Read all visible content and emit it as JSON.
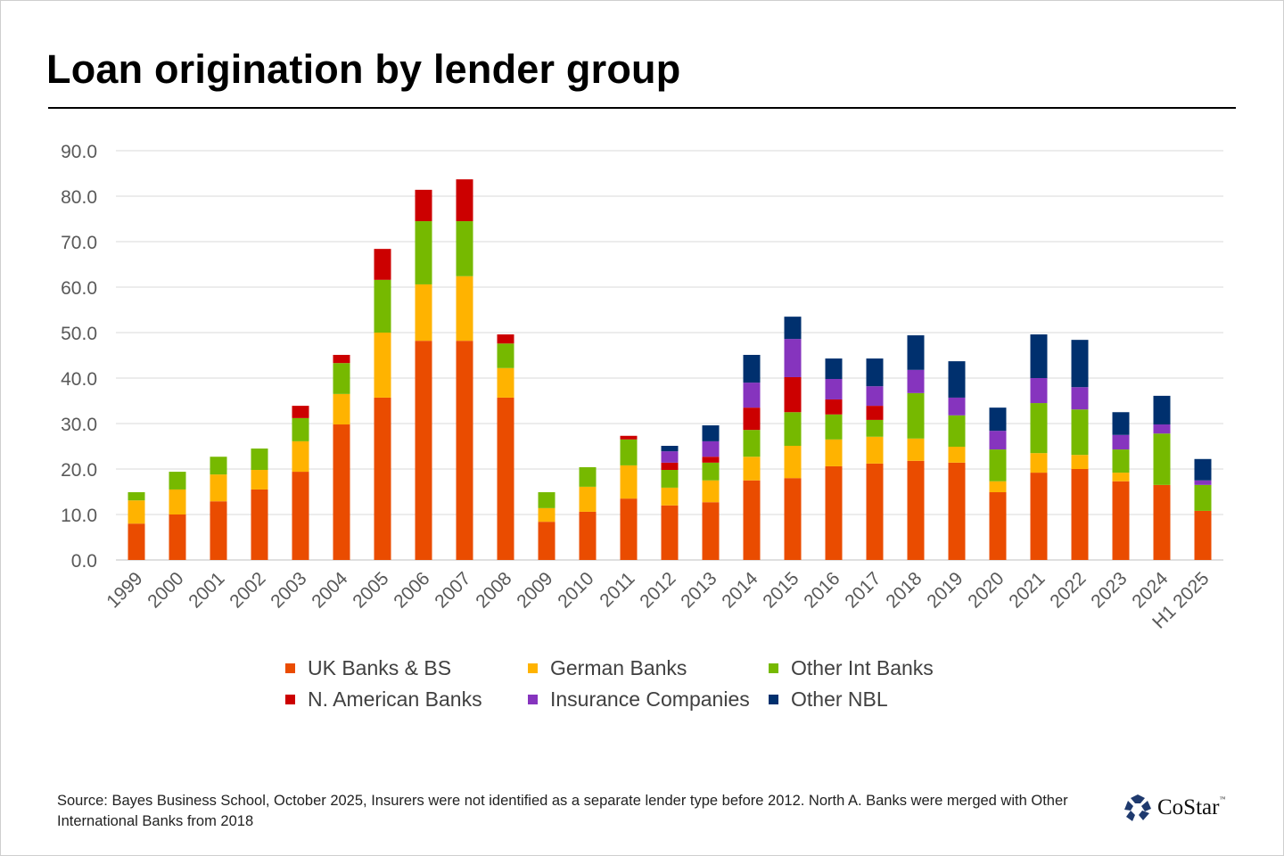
{
  "title": "Loan origination by lender group",
  "source": "Source: Bayes Business School, October 2025, Insurers were not identified as a separate lender type before 2012. North A. Banks were merged with Other International Banks from 2018",
  "logo": {
    "text": "CoStar",
    "tm": "™"
  },
  "chart_data": {
    "type": "bar",
    "stacked": true,
    "title": "Loan origination by lender group",
    "xlabel": "",
    "ylabel": "",
    "ylim": [
      0,
      90
    ],
    "yticks": [
      "0.0",
      "10.0",
      "20.0",
      "30.0",
      "40.0",
      "50.0",
      "60.0",
      "70.0",
      "80.0",
      "90.0"
    ],
    "grid": true,
    "legend_position": "bottom",
    "categories": [
      "1999",
      "2000",
      "2001",
      "2002",
      "2003",
      "2004",
      "2005",
      "2006",
      "2007",
      "2008",
      "2009",
      "2010",
      "2011",
      "2012",
      "2013",
      "2014",
      "2015",
      "2016",
      "2017",
      "2018",
      "2019",
      "2020",
      "2021",
      "2022",
      "2023",
      "2024",
      "H1 2025"
    ],
    "series": [
      {
        "name": "UK Banks & BS",
        "color": "#EA4C00",
        "values": [
          8.0,
          10.0,
          12.9,
          15.5,
          19.4,
          29.8,
          35.7,
          48.2,
          48.2,
          35.7,
          8.4,
          10.6,
          13.5,
          12.0,
          12.7,
          17.5,
          18.0,
          20.6,
          21.2,
          21.8,
          21.4,
          14.9,
          19.2,
          20.0,
          17.3,
          16.5,
          10.8
        ]
      },
      {
        "name": "German Banks",
        "color": "#FFB300",
        "values": [
          5.1,
          5.5,
          5.9,
          4.3,
          6.7,
          6.7,
          14.3,
          12.4,
          14.2,
          6.5,
          3.0,
          5.5,
          7.3,
          3.9,
          4.8,
          5.2,
          7.1,
          5.9,
          5.9,
          4.9,
          3.5,
          2.4,
          4.3,
          3.1,
          1.9,
          0,
          0
        ]
      },
      {
        "name": "Other Int Banks",
        "color": "#76B900",
        "values": [
          1.8,
          3.9,
          3.9,
          4.7,
          5.1,
          6.8,
          11.6,
          13.9,
          12.1,
          5.4,
          3.5,
          4.3,
          5.7,
          3.9,
          3.9,
          5.9,
          7.4,
          5.5,
          3.7,
          10.0,
          6.9,
          7.0,
          11.0,
          10.0,
          5.1,
          11.3,
          5.7
        ]
      },
      {
        "name": "N. American Banks",
        "color": "#CC0000",
        "values": [
          0,
          0,
          0,
          0,
          2.7,
          1.8,
          6.8,
          6.9,
          9.2,
          2.0,
          0,
          0,
          0.8,
          1.6,
          1.3,
          4.9,
          7.7,
          3.3,
          3.1,
          0,
          0,
          0,
          0,
          0,
          0,
          0,
          0
        ]
      },
      {
        "name": "Insurance Companies",
        "color": "#8634BE",
        "values": [
          0,
          0,
          0,
          0,
          0,
          0,
          0,
          0,
          0,
          0,
          0,
          0,
          0,
          2.5,
          3.4,
          5.5,
          8.4,
          4.5,
          4.3,
          5.1,
          3.9,
          4.1,
          5.5,
          4.9,
          3.2,
          2.0,
          1.0
        ]
      },
      {
        "name": "Other NBL",
        "color": "#00306E",
        "values": [
          0,
          0,
          0,
          0,
          0,
          0,
          0,
          0,
          0,
          0,
          0,
          0,
          0,
          1.2,
          3.5,
          6.1,
          4.9,
          4.5,
          6.1,
          7.6,
          8.0,
          5.1,
          9.6,
          10.4,
          5.0,
          6.3,
          4.7
        ]
      }
    ]
  }
}
